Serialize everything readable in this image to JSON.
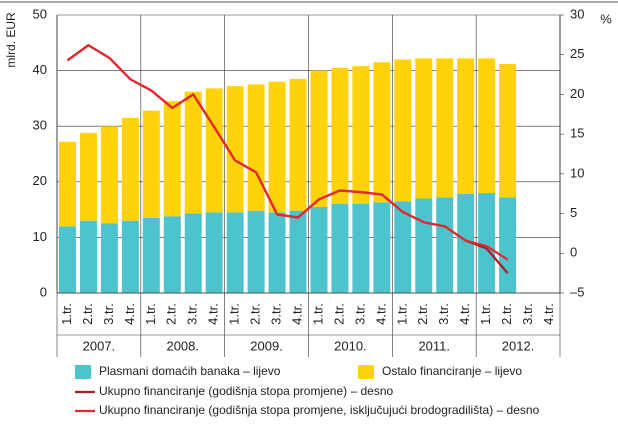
{
  "chart_data": {
    "type": "bar",
    "ylabel": "mlrd. EUR",
    "y2label": "%",
    "categories": [
      "1.tr.",
      "2.tr.",
      "3.tr.",
      "4.tr.",
      "1.tr.",
      "2.tr.",
      "3.tr.",
      "4.tr.",
      "1.tr.",
      "2.tr.",
      "3.tr.",
      "4.tr.",
      "1.tr.",
      "2.tr.",
      "3.tr.",
      "4.tr.",
      "1.tr.",
      "2.tr.",
      "3.tr.",
      "4.tr.",
      "1.tr.",
      "2.tr.",
      "3.tr.",
      "4.tr."
    ],
    "years": [
      "2007.",
      "2008.",
      "2009.",
      "2010.",
      "2011.",
      "2012."
    ],
    "ylim": [
      0,
      50
    ],
    "yticks": [
      0,
      10,
      20,
      30,
      40,
      50
    ],
    "y2lim": [
      -5,
      30
    ],
    "y2ticks": [
      {
        "value": -5,
        "label": "–5"
      },
      0,
      5,
      10,
      15,
      20,
      25,
      30
    ],
    "grid": true,
    "series": [
      {
        "name": "Plasmani domaćih banaka – lijevo",
        "type": "bar",
        "color": "#4dc3cd",
        "values": [
          12,
          13,
          12.5,
          13,
          13.5,
          13.8,
          14.3,
          14.5,
          14.5,
          14.8,
          14.5,
          14.8,
          15.5,
          16,
          16,
          16.3,
          16.5,
          17,
          17.2,
          17.8,
          18,
          17.2,
          null,
          null
        ]
      },
      {
        "name": "Ostalo financiranje – lijevo",
        "type": "bar",
        "color": "#ffd20a",
        "values": [
          15.2,
          15.8,
          17.5,
          18.5,
          19.3,
          20.7,
          21.9,
          22.3,
          22.7,
          22.7,
          23.5,
          23.7,
          24.5,
          24.5,
          24.8,
          25.2,
          25.5,
          25.2,
          25,
          24.4,
          24.2,
          24,
          null,
          null
        ]
      },
      {
        "name": "Ukupno financiranje (godišnja stopa promjene) – desno",
        "type": "line",
        "axis": "y2",
        "color": "#a51d25",
        "values": [
          24.3,
          26.2,
          24.6,
          21.9,
          20.5,
          18.3,
          20,
          15.9,
          11.7,
          10.2,
          4.9,
          4.5,
          6.8,
          7.9,
          7.7,
          7.4,
          5.2,
          3.9,
          3.4,
          1.6,
          0.6,
          -2.5,
          null,
          null
        ]
      },
      {
        "name": "Ukupno financiranje (godišnja stopa promjene, isključujući brodogradilišta) – desno",
        "type": "line",
        "axis": "y2",
        "color": "#e8262d",
        "values": [
          24.3,
          26.2,
          24.6,
          21.9,
          20.5,
          18.3,
          20,
          15.9,
          11.7,
          10.2,
          4.9,
          4.5,
          6.8,
          7.9,
          7.7,
          7.4,
          5.2,
          3.9,
          3.4,
          1.6,
          0.9,
          -0.8,
          null,
          null
        ]
      }
    ]
  }
}
